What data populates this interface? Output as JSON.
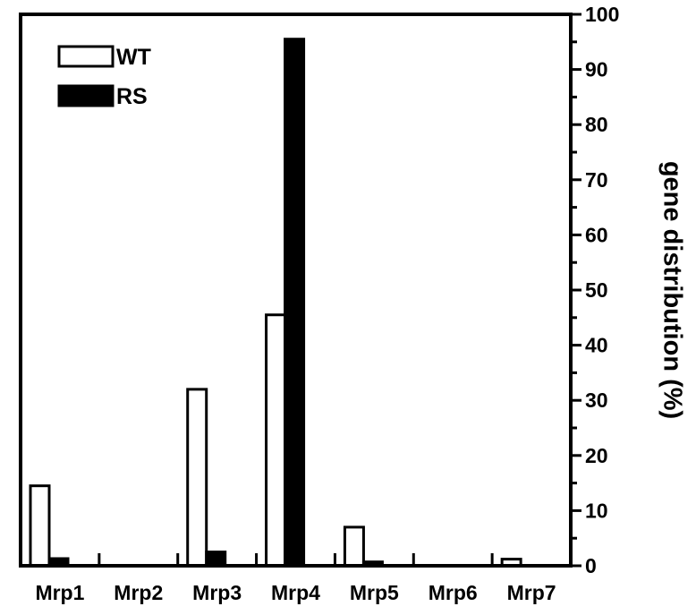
{
  "chart_data": {
    "type": "bar",
    "categories": [
      "Mrp1",
      "Mrp2",
      "Mrp3",
      "Mrp4",
      "Mrp5",
      "Mrp6",
      "Mrp7"
    ],
    "series": [
      {
        "name": "WT",
        "values": [
          14.5,
          0,
          32,
          45.5,
          7,
          0,
          1.2
        ],
        "fill": "#ffffff",
        "stroke": "#000000"
      },
      {
        "name": "RS",
        "values": [
          1.3,
          0,
          2.5,
          95.5,
          0.7,
          0,
          0
        ],
        "fill": "#000000",
        "stroke": "#000000"
      }
    ],
    "title": "",
    "xlabel": "",
    "ylabel": "gene distribution (%)",
    "ylim": [
      0,
      100
    ],
    "yticks": [
      0,
      10,
      20,
      30,
      40,
      50,
      60,
      70,
      80,
      90,
      100
    ],
    "y_axis_side": "right",
    "grid": false,
    "legend": {
      "placement": "top-left"
    }
  }
}
